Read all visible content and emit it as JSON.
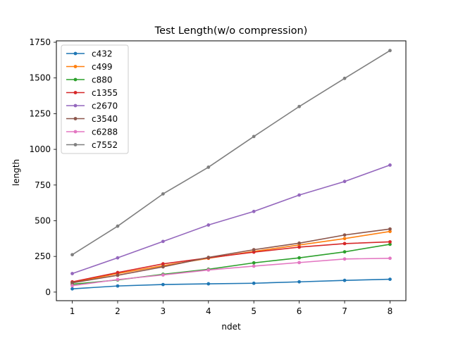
{
  "chart_data": {
    "type": "line",
    "title": "Test Length(w/o compression)",
    "xlabel": "ndet",
    "ylabel": "length",
    "x": [
      1,
      2,
      3,
      4,
      5,
      6,
      7,
      8
    ],
    "xlim": [
      0.65,
      8.35
    ],
    "ylim": [
      -60,
      1760
    ],
    "xticks": [
      1,
      2,
      3,
      4,
      5,
      6,
      7,
      8
    ],
    "yticks": [
      0,
      250,
      500,
      750,
      1000,
      1250,
      1500,
      1750
    ],
    "grid": false,
    "legend_position": "top-left",
    "series": [
      {
        "name": "c432",
        "color": "#1f77b4",
        "values": [
          23,
          43,
          53,
          58,
          62,
          72,
          82,
          90
        ]
      },
      {
        "name": "c499",
        "color": "#ff7f0e",
        "values": [
          67,
          130,
          185,
          237,
          285,
          330,
          375,
          425
        ]
      },
      {
        "name": "c880",
        "color": "#2ca02c",
        "values": [
          55,
          85,
          125,
          160,
          205,
          240,
          282,
          335
        ]
      },
      {
        "name": "c1355",
        "color": "#d62728",
        "values": [
          72,
          137,
          198,
          240,
          280,
          315,
          340,
          352
        ]
      },
      {
        "name": "c2670",
        "color": "#9467bd",
        "values": [
          130,
          240,
          355,
          470,
          565,
          680,
          775,
          890
        ]
      },
      {
        "name": "c3540",
        "color": "#8c564b",
        "values": [
          65,
          118,
          177,
          243,
          297,
          343,
          400,
          442
        ]
      },
      {
        "name": "c6288",
        "color": "#e377c2",
        "values": [
          45,
          88,
          120,
          155,
          182,
          207,
          232,
          237
        ]
      },
      {
        "name": "c7552",
        "color": "#7f7f7f",
        "values": [
          262,
          462,
          688,
          875,
          1090,
          1300,
          1497,
          1692
        ]
      }
    ]
  }
}
